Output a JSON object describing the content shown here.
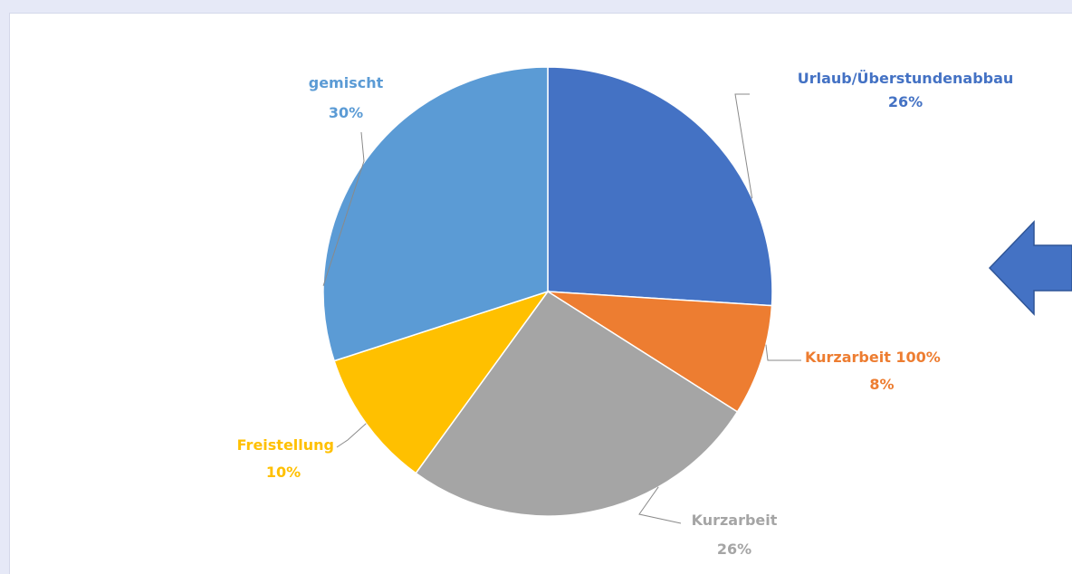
{
  "chart_data": {
    "type": "pie",
    "title": "",
    "start_angle_deg": 0,
    "direction": "clockwise",
    "slices": [
      {
        "label": "Urlaub/Überstundenabbau",
        "value": 26,
        "percent_label": "26%",
        "color": "#4472c4"
      },
      {
        "label": "Kurzarbeit 100%",
        "value": 8,
        "percent_label": "8%",
        "color": "#ed7d31"
      },
      {
        "label": "Kurzarbeit",
        "value": 26,
        "percent_label": "26%",
        "color": "#a5a5a5"
      },
      {
        "label": "Freistellung",
        "value": 10,
        "percent_label": "10%",
        "color": "#ffc000"
      },
      {
        "label": "gemischt",
        "value": 30,
        "percent_label": "30%",
        "color": "#5b9bd5"
      }
    ],
    "legend": "none",
    "data_labels": "outside with leader lines"
  },
  "annotation": {
    "arrow_direction": "left",
    "arrow_color": "#4472c4"
  }
}
